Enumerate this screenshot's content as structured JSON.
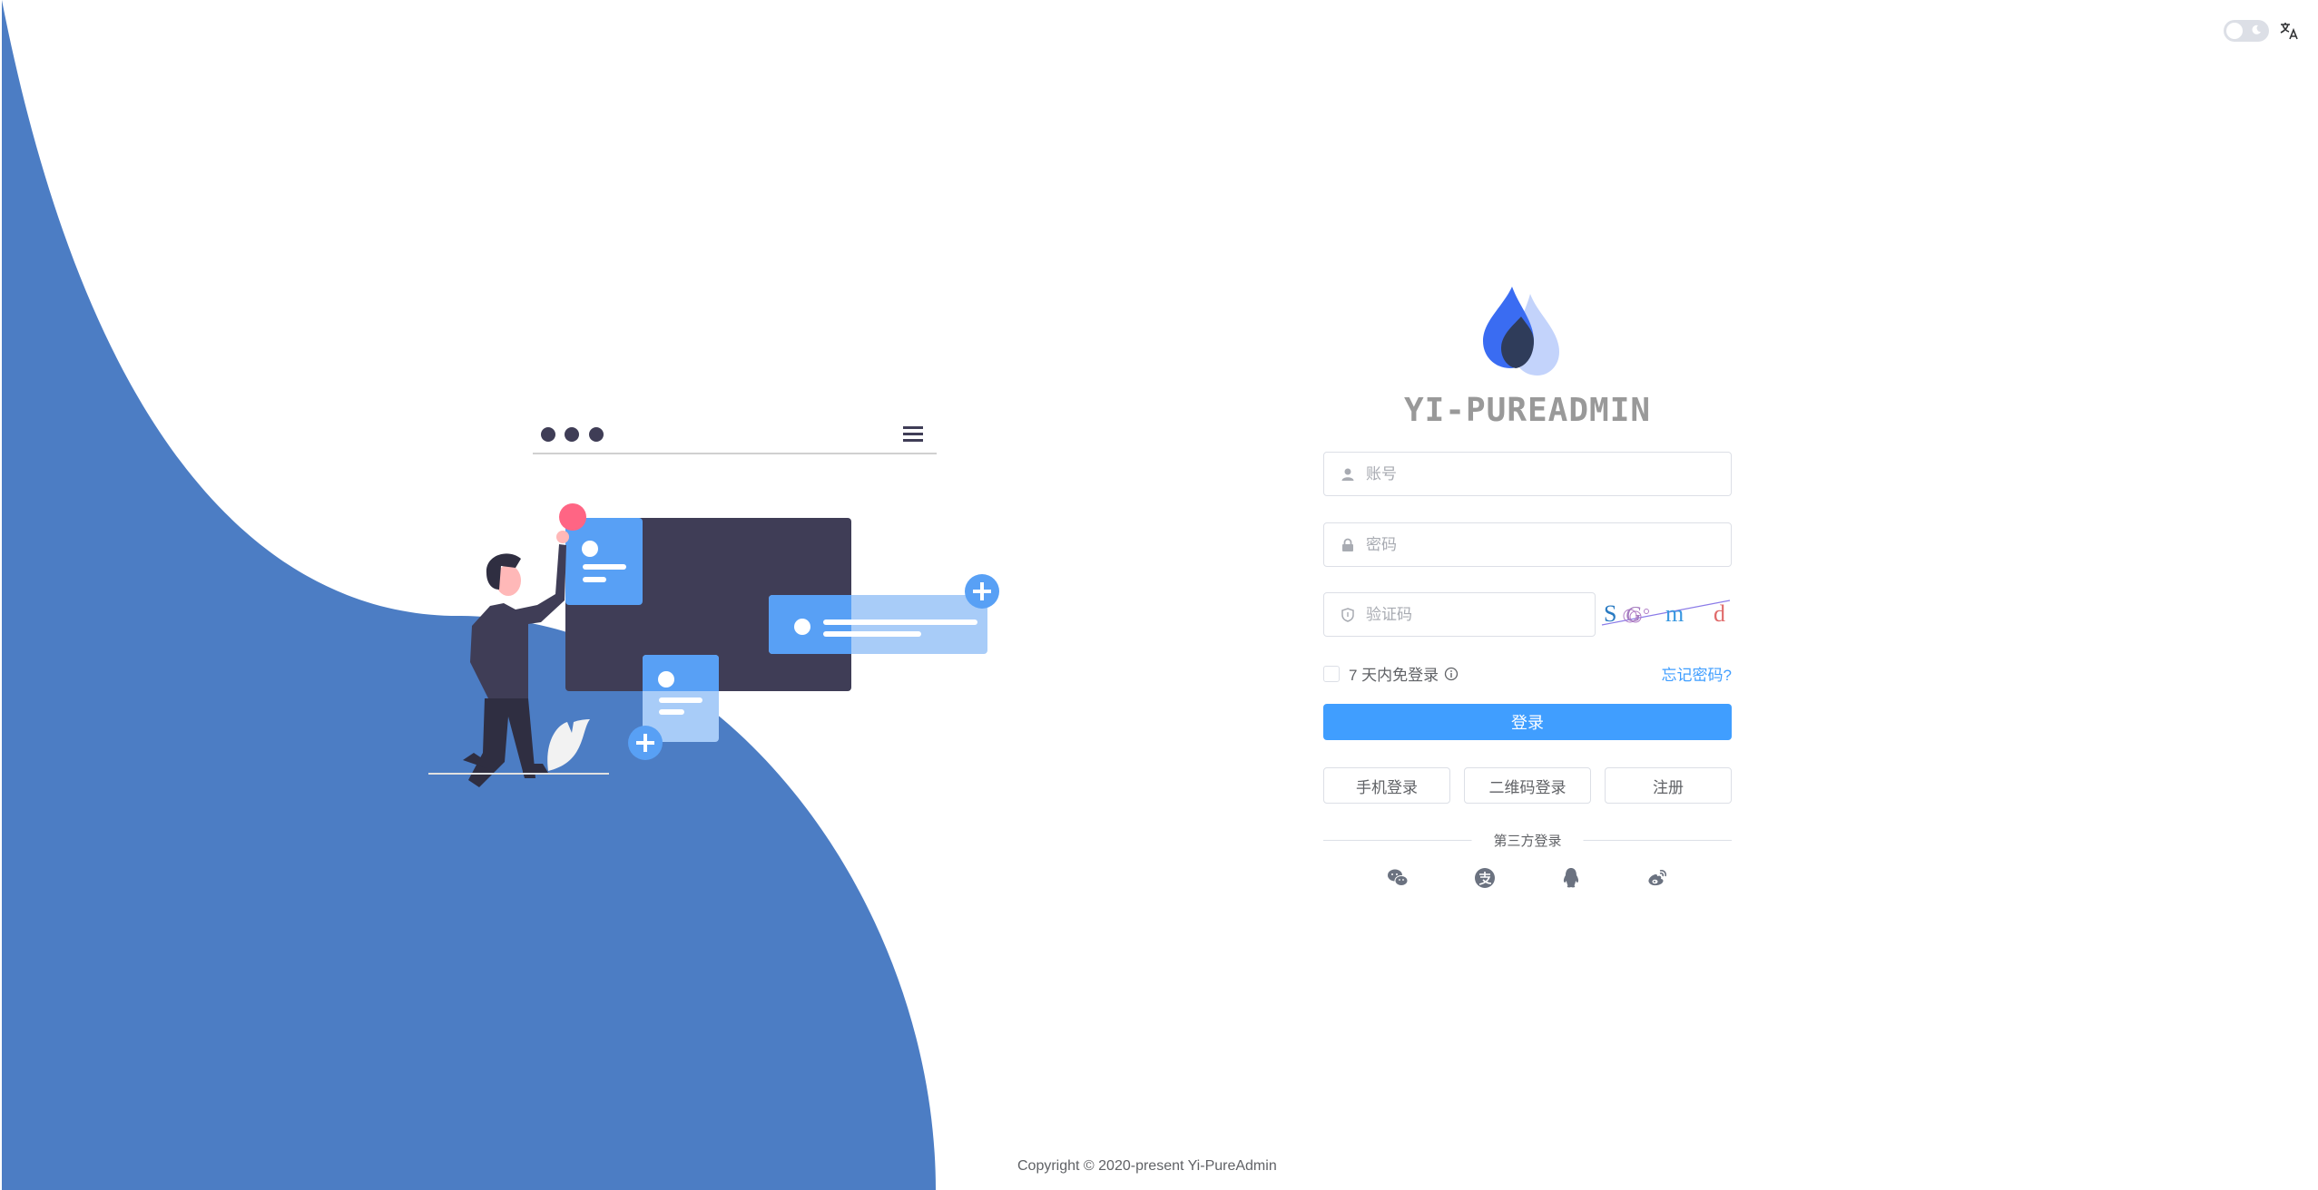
{
  "colors": {
    "wave": "#4c7dc4",
    "primary": "#409eff",
    "dark": "#3f3d56",
    "accent_pink": "#ff6584",
    "card_blue": "#58a0f5",
    "card_light": "#a8ccf8"
  },
  "topbar": {
    "theme_toggle": "dark-mode-switch",
    "language_icon": "translate-icon"
  },
  "brand": {
    "title": "YI-PUREADMIN"
  },
  "form": {
    "username_placeholder": "账号",
    "password_placeholder": "密码",
    "captcha_placeholder": "验证码",
    "captcha_chars": [
      "S",
      "G",
      "m",
      "d"
    ],
    "remember_label": "7 天内免登录",
    "forgot_label": "忘记密码?",
    "login_label": "登录",
    "phone_login_label": "手机登录",
    "qr_login_label": "二维码登录",
    "register_label": "注册",
    "third_party_label": "第三方登录",
    "social": [
      "wechat-icon",
      "alipay-icon",
      "qq-icon",
      "weibo-icon"
    ]
  },
  "footer": {
    "copyright": "Copyright © 2020-present Yi-PureAdmin"
  }
}
